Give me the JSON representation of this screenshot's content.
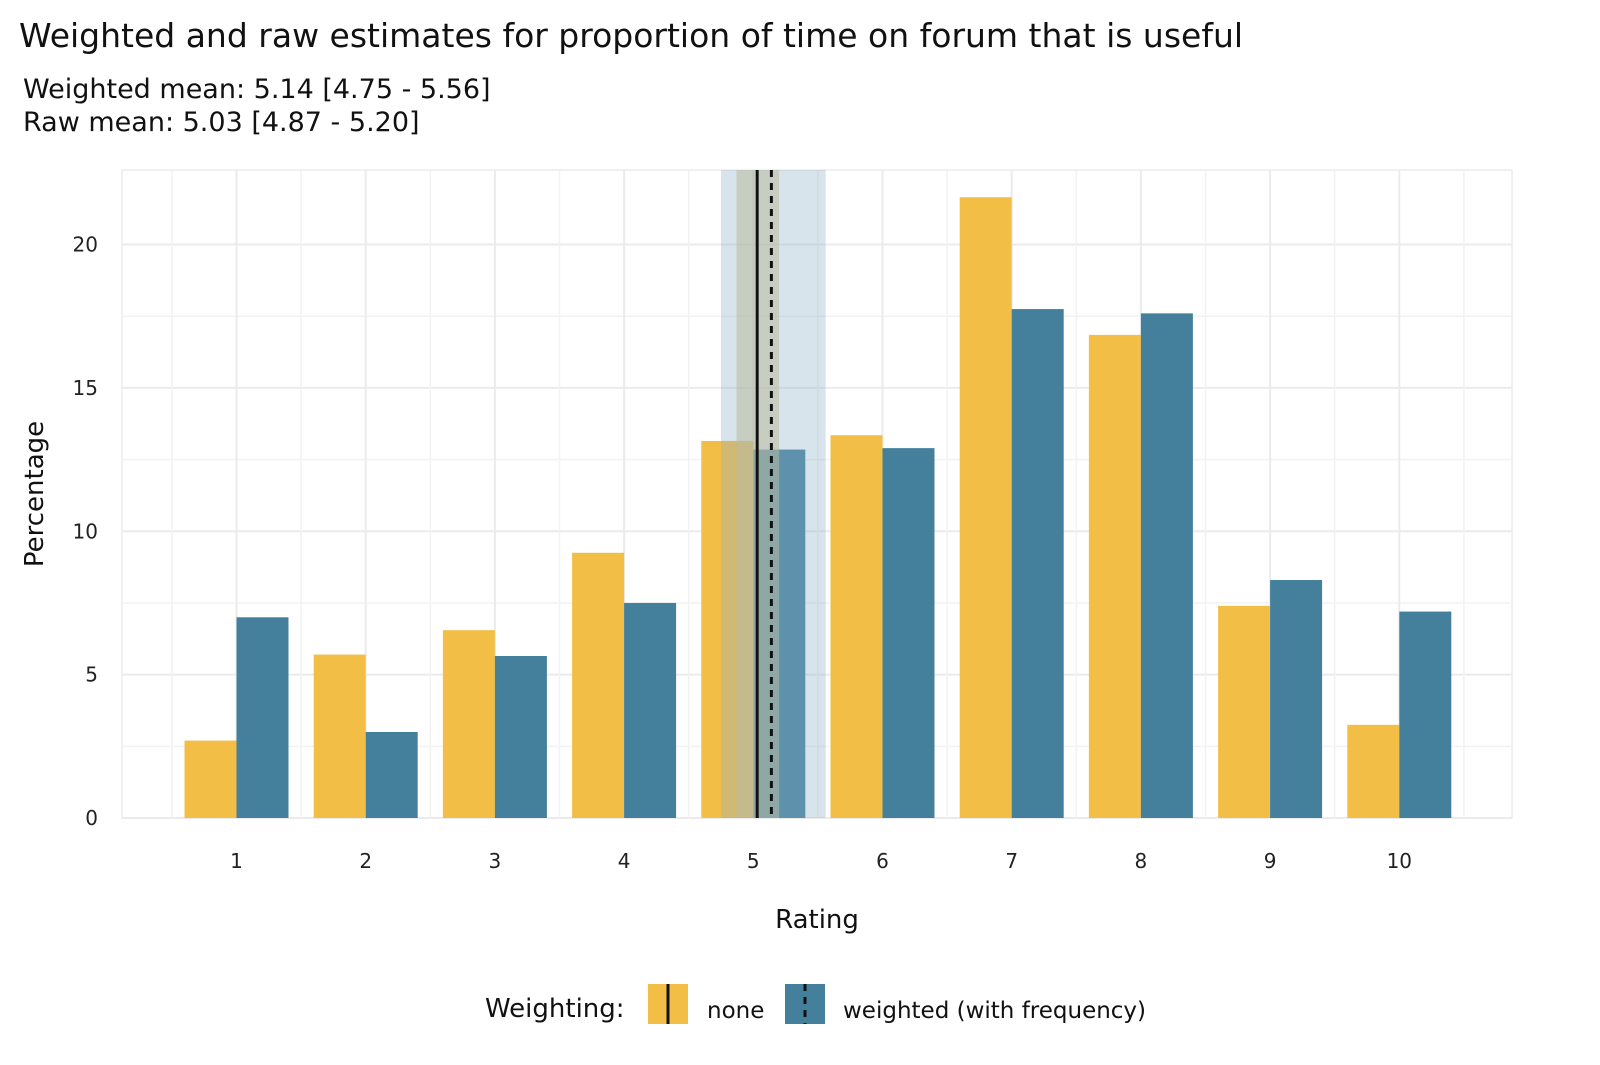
{
  "chart_data": {
    "type": "bar",
    "title": "Weighted and raw estimates for proportion of time on forum that is useful",
    "subtitle_lines": [
      "Weighted mean: 5.14 [4.75 - 5.56]",
      "Raw mean: 5.03 [4.87 - 5.20]"
    ],
    "xlabel": "Rating",
    "ylabel": "Percentage",
    "categories": [
      "1",
      "2",
      "3",
      "4",
      "5",
      "6",
      "7",
      "8",
      "9",
      "10"
    ],
    "series": [
      {
        "name": "none",
        "color": "#F2BE45",
        "values": [
          2.7,
          5.7,
          6.55,
          9.25,
          13.15,
          13.35,
          21.65,
          16.85,
          7.4,
          3.25
        ]
      },
      {
        "name": "weighted (with frequency)",
        "color": "#44809C",
        "values": [
          7.0,
          3.0,
          5.65,
          7.5,
          12.85,
          12.9,
          17.75,
          17.6,
          8.3,
          7.2
        ]
      }
    ],
    "ylim": [
      0,
      22.6
    ],
    "yticks": [
      0,
      5,
      10,
      15,
      20
    ],
    "grid": true,
    "legend": {
      "title": "Weighting:",
      "position": "bottom"
    },
    "reference_lines": [
      {
        "series": "none",
        "label": "Raw mean",
        "mean": 5.03,
        "ci": [
          4.87,
          5.2
        ],
        "line_style": "solid",
        "band_color": "#D2C08B"
      },
      {
        "series": "weighted (with frequency)",
        "label": "Weighted mean",
        "mean": 5.14,
        "ci": [
          4.75,
          5.56
        ],
        "line_style": "dashed",
        "band_color": "#8FB2C8"
      }
    ]
  }
}
